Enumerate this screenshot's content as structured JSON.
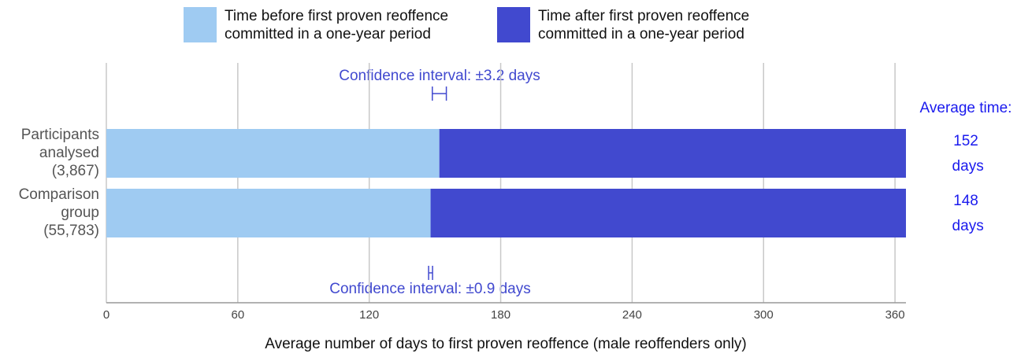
{
  "chart_data": {
    "type": "stacked-bar-horizontal",
    "categories": [
      "Participants analysed (3,867)",
      "Comparison group (55,783)"
    ],
    "series": [
      {
        "name": "Time before first proven reoffence committed in a one-year period",
        "color": "#9fcbf2",
        "values": [
          152,
          148
        ],
        "errors": [
          3.2,
          0.9
        ],
        "value_labels": [
          "152 days",
          "148 days"
        ]
      },
      {
        "name": "Time after first proven reoffence committed in a one-year period",
        "color": "#4149cf",
        "values": [
          213,
          217
        ]
      }
    ],
    "annotations": [
      "Confidence interval: ±3.2 days",
      "Confidence interval: ±0.9 days",
      "Average time:"
    ],
    "xlabel": "Average number of days to first proven reoffence (male reoffenders only)",
    "xlim": [
      0,
      365
    ],
    "xticks": [
      0,
      60,
      120,
      180,
      240,
      300,
      360
    ],
    "grid": true
  }
}
